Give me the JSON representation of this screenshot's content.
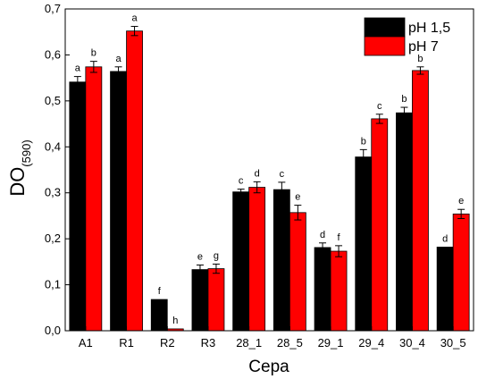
{
  "chart_data": {
    "type": "bar",
    "categories": [
      "A1",
      "R1",
      "R2",
      "R3",
      "28_1",
      "28_5",
      "29_1",
      "29_4",
      "30_4",
      "30_5"
    ],
    "series": [
      {
        "name": "pH 1,5",
        "color": "#000000",
        "values": [
          0.541,
          0.564,
          0.068,
          0.133,
          0.302,
          0.307,
          0.181,
          0.378,
          0.474,
          0.182
        ],
        "errors": [
          0.012,
          0.01,
          0.0,
          0.01,
          0.006,
          0.016,
          0.01,
          0.016,
          0.012,
          0.0
        ],
        "labels": [
          "a",
          "a",
          "f",
          "e",
          "c",
          "c",
          "d",
          "b",
          "b",
          "d"
        ]
      },
      {
        "name": "pH 7",
        "color": "#ff0000",
        "values": [
          0.574,
          0.652,
          0.004,
          0.135,
          0.312,
          0.257,
          0.173,
          0.461,
          0.566,
          0.254
        ],
        "errors": [
          0.012,
          0.01,
          0.0,
          0.01,
          0.012,
          0.016,
          0.012,
          0.01,
          0.008,
          0.01
        ],
        "labels": [
          "b",
          "a",
          "h",
          "g",
          "d",
          "e",
          "f",
          "c",
          "b",
          "e"
        ]
      }
    ],
    "title": "",
    "xlabel": "Сера",
    "ylabel_main": "DO",
    "ylabel_sub": "(590)",
    "ylim": [
      0,
      0.7
    ],
    "yticks": [
      "0,0",
      "0,1",
      "0,2",
      "0,3",
      "0,4",
      "0,5",
      "0,6",
      "0,7"
    ],
    "grid": false,
    "legend_position": "top-right"
  }
}
